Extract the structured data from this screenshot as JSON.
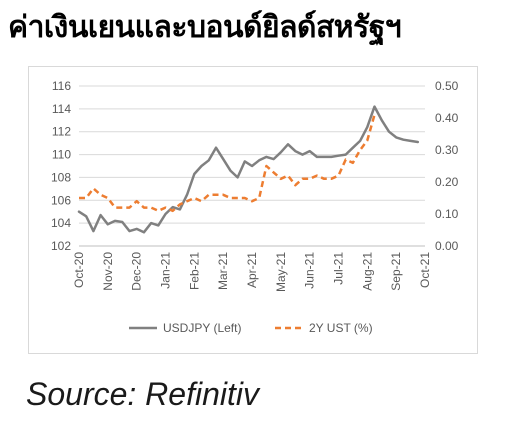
{
  "page": {
    "title": "ค่าเงินเยนและบอนด์ยิลด์สหรัฐฯ",
    "source": "Source: Refinitiv"
  },
  "chart_data": {
    "type": "line",
    "x_tick_labels": [
      "Oct-20",
      "Nov-20",
      "Dec-20",
      "Jan-21",
      "Feb-21",
      "Mar-21",
      "Apr-21",
      "May-21",
      "Jun-21",
      "Jul-21",
      "Aug-21",
      "Sep-21",
      "Oct-21"
    ],
    "y_left": {
      "ticks": [
        "102",
        "104",
        "106",
        "108",
        "110",
        "112",
        "114",
        "116"
      ],
      "range": [
        102,
        116
      ]
    },
    "y_right": {
      "ticks": [
        "0.00",
        "0.10",
        "0.20",
        "0.30",
        "0.40",
        "0.50"
      ],
      "range": [
        0,
        0.5
      ]
    },
    "x_range": [
      0,
      12
    ],
    "grid": "horizontal",
    "legend_position": "bottom",
    "series": [
      {
        "name": "USDJPY (Left)",
        "axis": "left",
        "color": "#808080",
        "style": "solid",
        "x": [
          0,
          0.25,
          0.5,
          0.75,
          1.0,
          1.25,
          1.5,
          1.75,
          2.0,
          2.25,
          2.5,
          2.75,
          3.0,
          3.25,
          3.5,
          3.75,
          4.0,
          4.25,
          4.5,
          4.75,
          5.0,
          5.25,
          5.5,
          5.75,
          6.0,
          6.25,
          6.5,
          6.75,
          7.0,
          7.25,
          7.5,
          7.75,
          8.0,
          8.25,
          8.5,
          8.75,
          9.0,
          9.25,
          9.5,
          9.75,
          10.0,
          10.25,
          10.5,
          10.75,
          11.0,
          11.25,
          11.5,
          11.75
        ],
        "y": [
          105.0,
          104.6,
          103.3,
          104.7,
          103.9,
          104.2,
          104.1,
          103.3,
          103.5,
          103.2,
          104.0,
          103.8,
          104.8,
          105.4,
          105.2,
          106.5,
          108.3,
          109.0,
          109.5,
          110.6,
          109.6,
          108.6,
          108.0,
          109.4,
          109.0,
          109.5,
          109.8,
          109.6,
          110.2,
          110.9,
          110.3,
          110.0,
          110.3,
          109.8,
          109.8,
          109.8,
          109.9,
          110.0,
          110.6,
          111.2,
          112.4,
          114.2,
          113.0,
          112.0,
          111.5,
          111.3,
          111.2,
          111.1
        ]
      },
      {
        "name": "2Y UST (%)",
        "axis": "right",
        "color": "#ed7d31",
        "style": "dashed",
        "x": [
          0,
          0.25,
          0.5,
          0.75,
          1.0,
          1.25,
          1.5,
          1.75,
          2.0,
          2.25,
          2.5,
          2.75,
          3.0,
          3.25,
          3.5,
          3.75,
          4.0,
          4.25,
          4.5,
          4.75,
          5.0,
          5.25,
          5.5,
          5.75,
          6.0,
          6.25,
          6.5,
          6.75,
          7.0,
          7.25,
          7.5,
          7.75,
          8.0,
          8.25,
          8.5,
          8.75,
          9.0,
          9.25,
          9.5,
          9.75,
          10.0,
          10.25
        ],
        "y": [
          0.15,
          0.15,
          0.18,
          0.16,
          0.15,
          0.12,
          0.12,
          0.12,
          0.14,
          0.12,
          0.12,
          0.11,
          0.12,
          0.11,
          0.13,
          0.14,
          0.15,
          0.14,
          0.16,
          0.16,
          0.16,
          0.15,
          0.15,
          0.15,
          0.14,
          0.15,
          0.25,
          0.23,
          0.21,
          0.22,
          0.19,
          0.21,
          0.21,
          0.22,
          0.21,
          0.21,
          0.22,
          0.27,
          0.26,
          0.3,
          0.33,
          0.41
        ]
      }
    ]
  }
}
